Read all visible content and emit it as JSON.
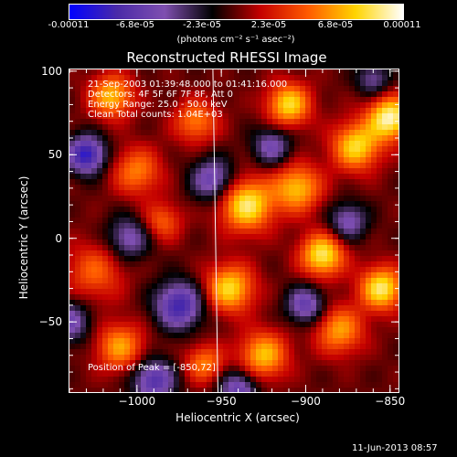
{
  "colorbar": {
    "ticks": [
      "-0.00011",
      "-6.8e-05",
      "-2.3e-05",
      "2.3e-05",
      "6.8e-05",
      "0.00011"
    ],
    "unit_label": "(photons cm⁻² s⁻¹ asec⁻²)",
    "colors": [
      "#0000ff",
      "#4a2aa8",
      "#7f4fb0",
      "#000000",
      "#c40000",
      "#ff5a00",
      "#ffd400",
      "#ffffff"
    ]
  },
  "chart_data": {
    "type": "heatmap",
    "title": "Reconstructed RHESSI Image",
    "xlabel": "Heliocentric X (arcsec)",
    "ylabel": "Heliocentric Y (arcsec)",
    "xlim": [
      -1040,
      -845
    ],
    "ylim": [
      -92,
      101
    ],
    "xticks": [
      {
        "value": -1000,
        "label": "−1000"
      },
      {
        "value": -950,
        "label": "−950"
      },
      {
        "value": -900,
        "label": "−900"
      },
      {
        "value": -850,
        "label": "−850"
      }
    ],
    "yticks": [
      {
        "value": 100,
        "label": "100"
      },
      {
        "value": 50,
        "label": "50"
      },
      {
        "value": 0,
        "label": "0"
      },
      {
        "value": -50,
        "label": "−50"
      }
    ],
    "info_lines": [
      "21-Sep-2003 01:39:48.000 to 01:41:16.000",
      "Detectors: 4F 5F 6F 7F 8F, Att 0",
      "Energy Range: 25.0 - 50.0 keV",
      "Clean     Total counts: 1.04E+03"
    ],
    "peak_label": "Position of Peak = [-850,72]",
    "peak": {
      "x": -850,
      "y": 72
    },
    "limb_x_at_top": -955,
    "limb_x_at_bottom": -952,
    "blobs": [
      {
        "x": -1015,
        "y": 85,
        "amp": 0.8,
        "s": 9
      },
      {
        "x": -1000,
        "y": 40,
        "amp": 0.6,
        "s": 10
      },
      {
        "x": -1025,
        "y": -20,
        "amp": 0.5,
        "s": 12
      },
      {
        "x": -1010,
        "y": -65,
        "amp": 0.7,
        "s": 10
      },
      {
        "x": -985,
        "y": 10,
        "amp": 0.5,
        "s": 8
      },
      {
        "x": -965,
        "y": 70,
        "amp": 0.6,
        "s": 9
      },
      {
        "x": -945,
        "y": -30,
        "amp": 0.9,
        "s": 10
      },
      {
        "x": -935,
        "y": 20,
        "amp": 1.0,
        "s": 11
      },
      {
        "x": -925,
        "y": -70,
        "amp": 0.8,
        "s": 10
      },
      {
        "x": -910,
        "y": 80,
        "amp": 0.9,
        "s": 9
      },
      {
        "x": -905,
        "y": 30,
        "amp": 0.8,
        "s": 10
      },
      {
        "x": -890,
        "y": -10,
        "amp": 1.0,
        "s": 9
      },
      {
        "x": -880,
        "y": -55,
        "amp": 0.7,
        "s": 10
      },
      {
        "x": -870,
        "y": 55,
        "amp": 0.9,
        "s": 10
      },
      {
        "x": -855,
        "y": -30,
        "amp": 1.0,
        "s": 9
      },
      {
        "x": -850,
        "y": 72,
        "amp": 1.1,
        "s": 9
      },
      {
        "x": -960,
        "y": -75,
        "amp": 0.6,
        "s": 8
      },
      {
        "x": -1030,
        "y": 50,
        "amp": -1.0,
        "s": 8
      },
      {
        "x": -975,
        "y": -40,
        "amp": -0.9,
        "s": 10
      },
      {
        "x": -990,
        "y": -85,
        "amp": -0.8,
        "s": 9
      },
      {
        "x": -955,
        "y": 35,
        "amp": -0.7,
        "s": 9
      },
      {
        "x": -920,
        "y": 55,
        "amp": -0.6,
        "s": 8
      },
      {
        "x": -900,
        "y": -40,
        "amp": -0.7,
        "s": 8
      },
      {
        "x": -875,
        "y": 10,
        "amp": -0.6,
        "s": 8
      },
      {
        "x": -860,
        "y": 95,
        "amp": -0.5,
        "s": 7
      },
      {
        "x": -1005,
        "y": 0,
        "amp": -0.6,
        "s": 9
      },
      {
        "x": -940,
        "y": -90,
        "amp": -0.7,
        "s": 8
      },
      {
        "x": -1040,
        "y": -50,
        "amp": -0.6,
        "s": 9
      }
    ]
  },
  "footer": {
    "date_stamp": "11-Jun-2013 08:57"
  }
}
